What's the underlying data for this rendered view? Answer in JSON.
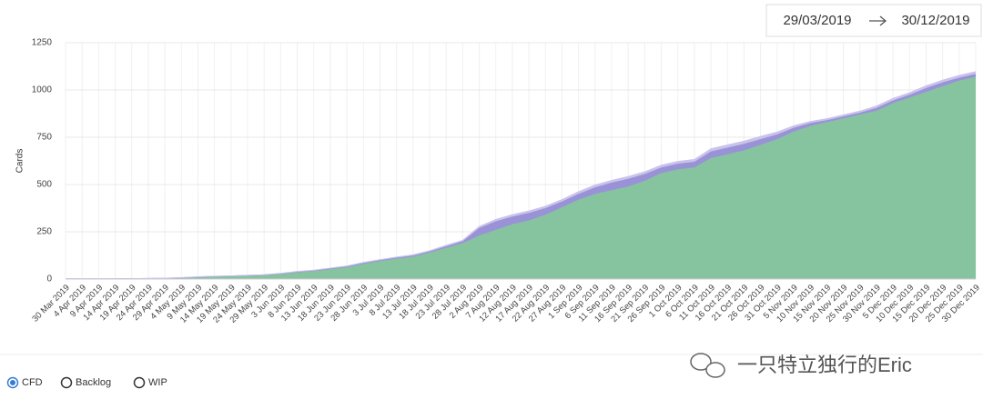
{
  "date_range": {
    "start": "29/03/2019",
    "end": "30/12/2019"
  },
  "chart_data": {
    "type": "stacked-area",
    "y_label": "Cards",
    "categories": [
      "30 Mar 2019",
      "4 Apr 2019",
      "9 Apr 2019",
      "14 Apr 2019",
      "19 Apr 2019",
      "24 Apr 2019",
      "29 Apr 2019",
      "4 May 2019",
      "9 May 2019",
      "14 May 2019",
      "19 May 2019",
      "24 May 2019",
      "29 May 2019",
      "3 Jun 2019",
      "8 Jun 2019",
      "13 Jun 2019",
      "18 Jun 2019",
      "23 Jun 2019",
      "28 Jun 2019",
      "3 Jul 2019",
      "8 Jul 2019",
      "13 Jul 2019",
      "18 Jul 2019",
      "23 Jul 2019",
      "28 Jul 2019",
      "2 Aug 2019",
      "7 Aug 2019",
      "12 Aug 2019",
      "17 Aug 2019",
      "22 Aug 2019",
      "27 Aug 2019",
      "1 Sep 2019",
      "6 Sep 2019",
      "11 Sep 2019",
      "16 Sep 2019",
      "21 Sep 2019",
      "26 Sep 2019",
      "1 Oct 2019",
      "6 Oct 2019",
      "11 Oct 2019",
      "16 Oct 2019",
      "21 Oct 2019",
      "26 Oct 2019",
      "31 Oct 2019",
      "5 Nov 2019",
      "10 Nov 2019",
      "15 Nov 2019",
      "20 Nov 2019",
      "25 Nov 2019",
      "30 Nov 2019",
      "5 Dec 2019",
      "10 Dec 2019",
      "15 Dec 2019",
      "20 Dec 2019",
      "25 Dec 2019",
      "30 Dec 2019"
    ],
    "series": [
      {
        "color": "#86c4a0",
        "values": [
          0,
          0,
          0,
          0,
          1,
          2,
          3,
          6,
          9,
          12,
          14,
          17,
          20,
          25,
          35,
          42,
          52,
          62,
          80,
          95,
          108,
          118,
          140,
          165,
          190,
          230,
          260,
          290,
          310,
          340,
          380,
          420,
          450,
          470,
          490,
          520,
          560,
          580,
          590,
          640,
          660,
          680,
          710,
          740,
          780,
          810,
          830,
          850,
          870,
          890,
          930,
          960,
          990,
          1020,
          1050,
          1070
        ]
      },
      {
        "color": "#9a92d6",
        "values": [
          1,
          1,
          1,
          1,
          1,
          1,
          1,
          1,
          2,
          2,
          2,
          2,
          2,
          3,
          3,
          3,
          4,
          4,
          5,
          5,
          5,
          6,
          6,
          8,
          10,
          40,
          45,
          40,
          40,
          35,
          30,
          30,
          35,
          40,
          40,
          35,
          30,
          30,
          30,
          35,
          35,
          35,
          30,
          25,
          20,
          15,
          10,
          10,
          10,
          15,
          15,
          15,
          20,
          20,
          15,
          15
        ]
      },
      {
        "color": "#c9c3ec",
        "values": [
          0,
          0,
          0,
          0,
          0,
          0,
          0,
          0,
          1,
          1,
          1,
          1,
          1,
          2,
          2,
          2,
          2,
          3,
          3,
          3,
          3,
          4,
          4,
          5,
          5,
          8,
          10,
          10,
          10,
          10,
          10,
          12,
          12,
          12,
          12,
          12,
          12,
          12,
          12,
          14,
          14,
          14,
          14,
          12,
          10,
          8,
          8,
          8,
          8,
          10,
          10,
          10,
          12,
          12,
          12,
          12
        ]
      }
    ],
    "ylim": [
      0,
      1250
    ],
    "yticks": [
      0,
      250,
      500,
      750,
      1000,
      1250
    ],
    "grid": true
  },
  "controls": {
    "options": [
      "CFD",
      "Backlog",
      "WIP"
    ],
    "selected": 0
  },
  "watermark": "一只特立独行的Eric"
}
